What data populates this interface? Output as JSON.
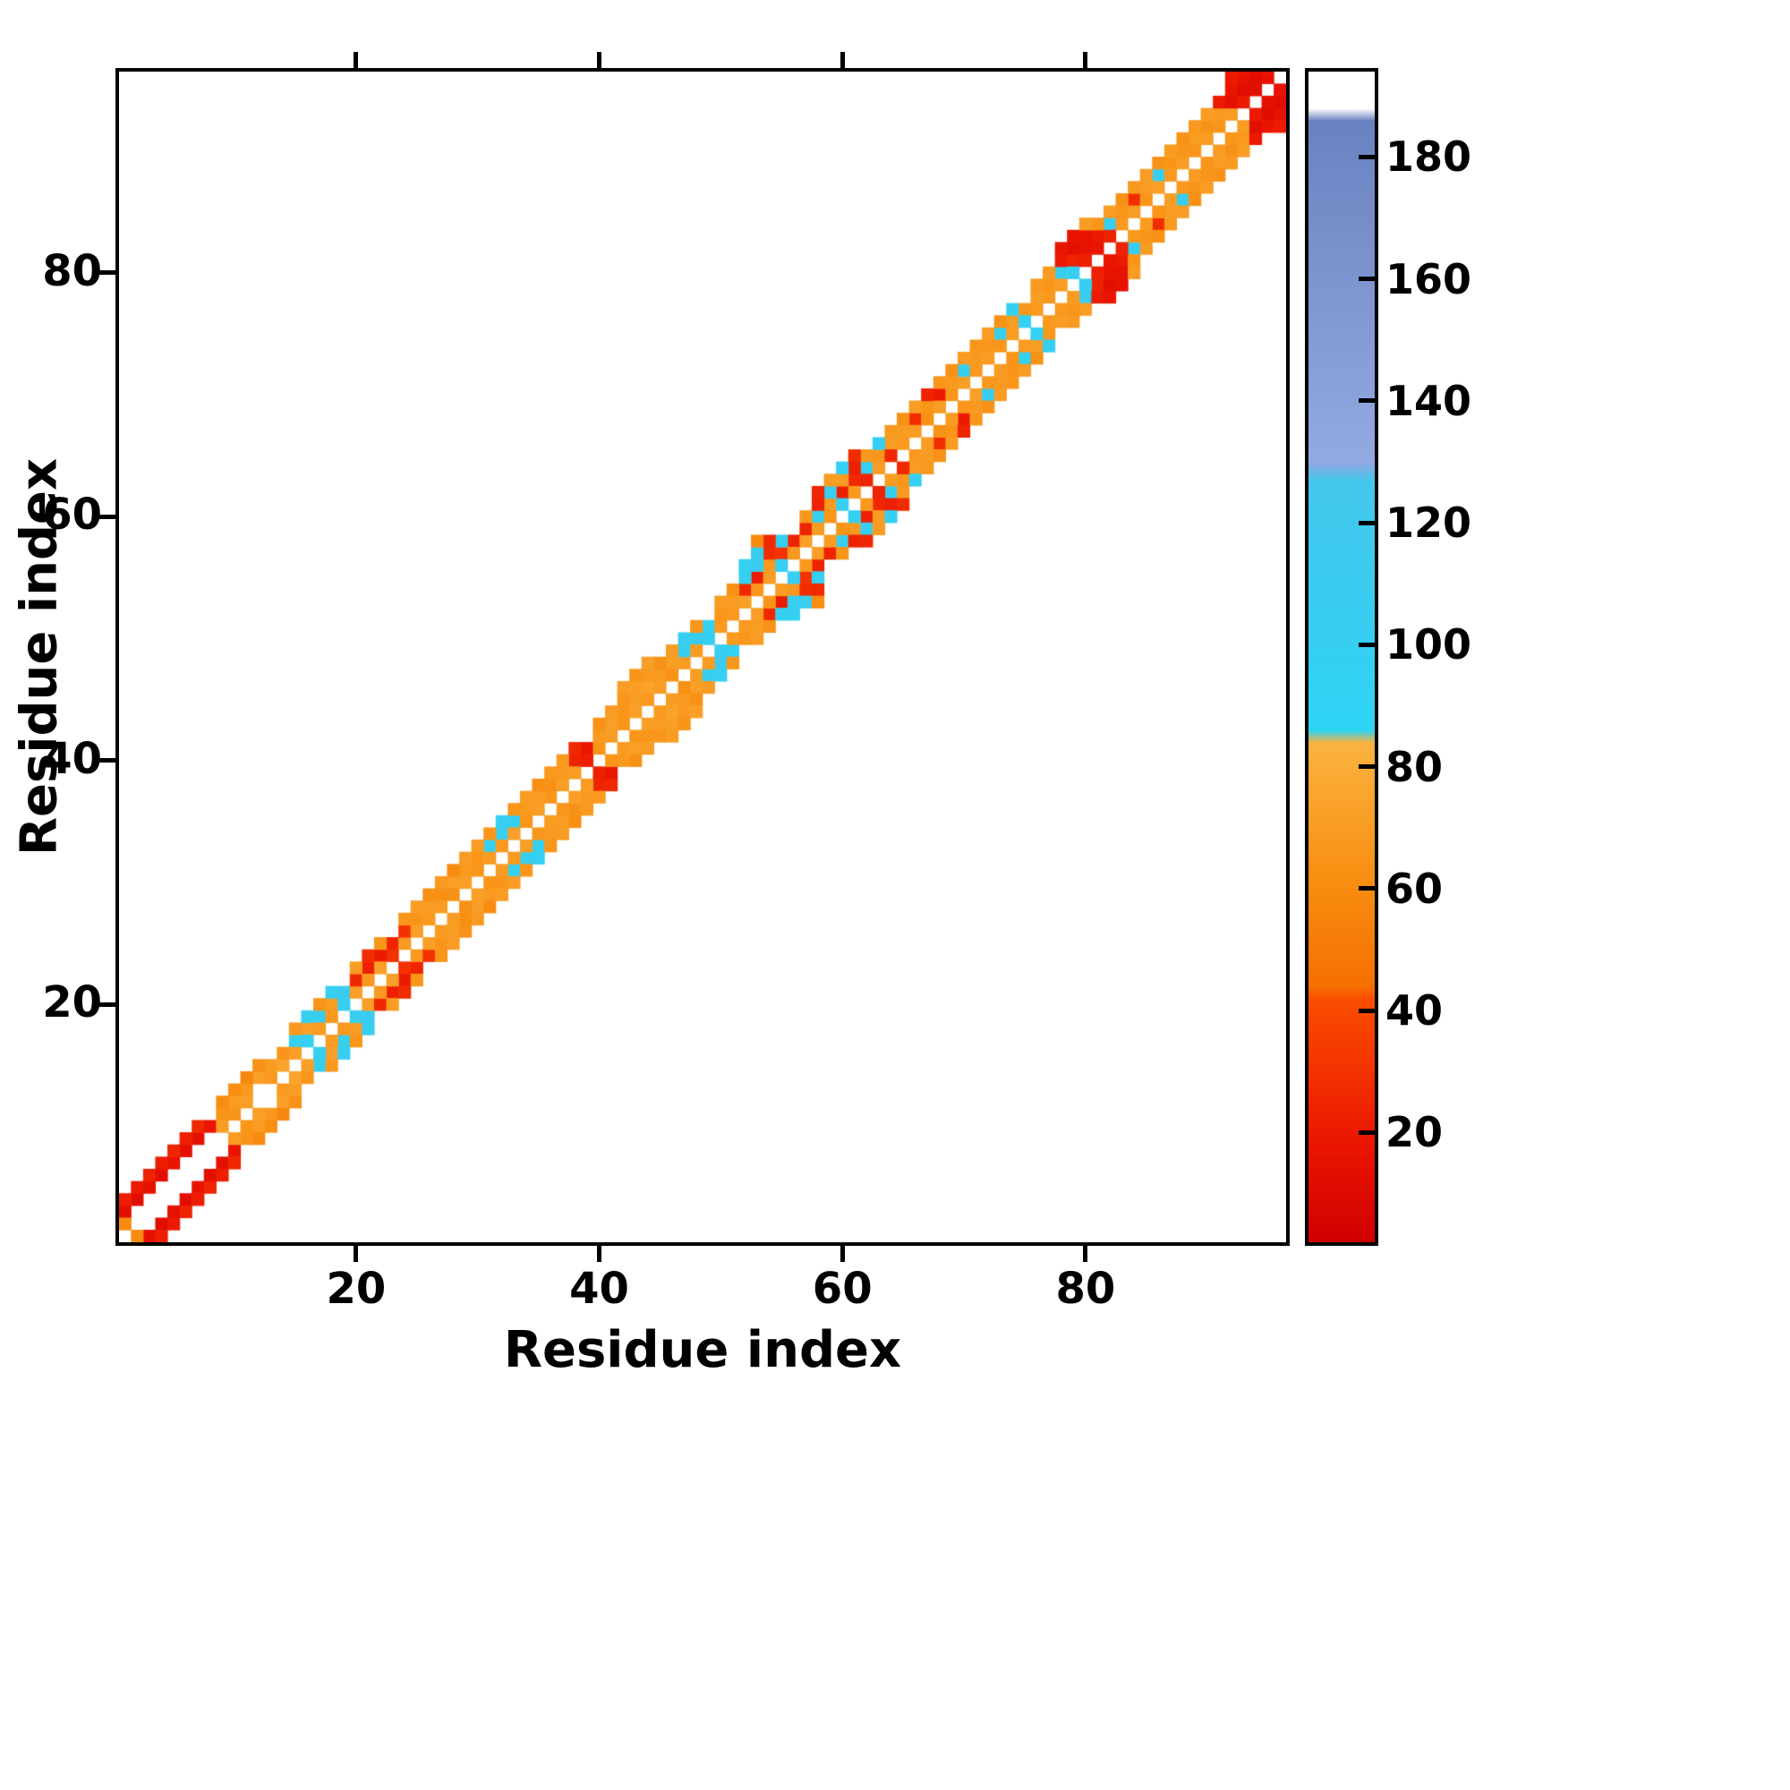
{
  "chart_data": {
    "type": "heatmap",
    "title": "",
    "xlabel": "Residue index",
    "ylabel": "Residue index",
    "x_ticks": [
      20,
      40,
      60,
      80
    ],
    "y_ticks": [
      20,
      40,
      60,
      80
    ],
    "axis_min": 0.5,
    "axis_max": 96.5,
    "n_residues": 96,
    "symmetric": true,
    "background_color": "#ffffff",
    "colorbar": {
      "range": [
        2,
        194
      ],
      "ticks": [
        20,
        40,
        60,
        80,
        100,
        120,
        140,
        160,
        180
      ],
      "stops": [
        {
          "v": 2,
          "color": "#cf0000"
        },
        {
          "v": 18,
          "color": "#ea1500"
        },
        {
          "v": 42,
          "color": "#fb4e00"
        },
        {
          "v": 44,
          "color": "#f57000"
        },
        {
          "v": 62,
          "color": "#f88f12"
        },
        {
          "v": 84,
          "color": "#fbb340"
        },
        {
          "v": 86,
          "color": "#2ed4f4"
        },
        {
          "v": 127,
          "color": "#44c6ec"
        },
        {
          "v": 130,
          "color": "#93a9e2"
        },
        {
          "v": 186,
          "color": "#6a82c0"
        },
        {
          "v": 188,
          "color": "#ffffff"
        },
        {
          "v": 194,
          "color": "#ffffff"
        }
      ]
    },
    "contacts": [
      [
        1,
        3,
        14
      ],
      [
        2,
        4,
        12
      ],
      [
        3,
        5,
        15
      ],
      [
        4,
        6,
        13
      ],
      [
        5,
        7,
        16
      ],
      [
        6,
        8,
        14
      ],
      [
        7,
        9,
        15
      ],
      [
        8,
        10,
        18
      ],
      [
        1,
        4,
        22
      ],
      [
        2,
        5,
        20
      ],
      [
        3,
        6,
        24
      ],
      [
        4,
        7,
        21
      ],
      [
        5,
        8,
        25
      ],
      [
        6,
        9,
        22
      ],
      [
        7,
        10,
        26
      ],
      [
        1,
        2,
        60
      ],
      [
        9,
        11,
        65
      ],
      [
        10,
        12,
        70
      ],
      [
        11,
        13,
        68
      ],
      [
        12,
        14,
        72
      ],
      [
        9,
        12,
        60
      ],
      [
        10,
        13,
        62
      ],
      [
        11,
        14,
        58
      ],
      [
        12,
        15,
        64
      ],
      [
        9,
        10,
        70
      ],
      [
        10,
        11,
        66
      ],
      [
        11,
        12,
        72
      ],
      [
        13,
        14,
        68
      ],
      [
        13,
        15,
        70
      ],
      [
        14,
        15,
        75
      ],
      [
        14,
        16,
        66
      ],
      [
        15,
        17,
        100
      ],
      [
        16,
        18,
        72
      ],
      [
        17,
        19,
        105
      ],
      [
        18,
        20,
        70
      ],
      [
        19,
        21,
        108
      ],
      [
        15,
        18,
        68
      ],
      [
        16,
        19,
        102
      ],
      [
        17,
        20,
        66
      ],
      [
        18,
        21,
        100
      ],
      [
        15,
        16,
        72
      ],
      [
        16,
        17,
        100
      ],
      [
        17,
        18,
        70
      ],
      [
        18,
        19,
        68
      ],
      [
        19,
        20,
        104
      ],
      [
        20,
        21,
        72
      ],
      [
        20,
        22,
        26
      ],
      [
        21,
        23,
        22
      ],
      [
        22,
        24,
        20
      ],
      [
        23,
        25,
        24
      ],
      [
        20,
        23,
        70
      ],
      [
        21,
        24,
        28
      ],
      [
        22,
        25,
        66
      ],
      [
        21,
        22,
        68
      ],
      [
        22,
        23,
        72
      ],
      [
        23,
        24,
        30
      ],
      [
        24,
        25,
        68
      ],
      [
        24,
        26,
        30
      ],
      [
        25,
        27,
        65
      ],
      [
        26,
        28,
        70
      ],
      [
        27,
        29,
        62
      ],
      [
        28,
        30,
        72
      ],
      [
        29,
        31,
        68
      ],
      [
        30,
        32,
        66
      ],
      [
        24,
        27,
        66
      ],
      [
        25,
        28,
        70
      ],
      [
        26,
        29,
        64
      ],
      [
        27,
        30,
        68
      ],
      [
        28,
        31,
        60
      ],
      [
        29,
        32,
        70
      ],
      [
        25,
        26,
        72
      ],
      [
        26,
        27,
        68
      ],
      [
        27,
        28,
        70
      ],
      [
        28,
        29,
        64
      ],
      [
        29,
        30,
        72
      ],
      [
        30,
        31,
        66
      ],
      [
        31,
        33,
        100
      ],
      [
        32,
        34,
        104
      ],
      [
        33,
        35,
        98
      ],
      [
        30,
        33,
        70
      ],
      [
        31,
        34,
        66
      ],
      [
        32,
        35,
        102
      ],
      [
        31,
        32,
        70
      ],
      [
        32,
        33,
        68
      ],
      [
        33,
        34,
        72
      ],
      [
        34,
        35,
        66
      ],
      [
        34,
        36,
        68
      ],
      [
        35,
        37,
        70
      ],
      [
        36,
        38,
        64
      ],
      [
        37,
        39,
        68
      ],
      [
        33,
        36,
        66
      ],
      [
        34,
        37,
        70
      ],
      [
        35,
        38,
        62
      ],
      [
        36,
        39,
        68
      ],
      [
        35,
        36,
        70
      ],
      [
        36,
        37,
        66
      ],
      [
        37,
        38,
        72
      ],
      [
        38,
        40,
        24
      ],
      [
        39,
        41,
        18
      ],
      [
        37,
        40,
        68
      ],
      [
        38,
        41,
        26
      ],
      [
        38,
        39,
        70
      ],
      [
        39,
        40,
        22
      ],
      [
        40,
        41,
        66
      ],
      [
        40,
        42,
        68
      ],
      [
        41,
        43,
        72
      ],
      [
        42,
        44,
        66
      ],
      [
        43,
        45,
        70
      ],
      [
        44,
        46,
        74
      ],
      [
        45,
        47,
        68
      ],
      [
        46,
        48,
        72
      ],
      [
        40,
        43,
        64
      ],
      [
        41,
        44,
        70
      ],
      [
        42,
        45,
        66
      ],
      [
        43,
        46,
        72
      ],
      [
        44,
        47,
        68
      ],
      [
        45,
        48,
        64
      ],
      [
        42,
        46,
        70
      ],
      [
        43,
        47,
        66
      ],
      [
        44,
        48,
        72
      ],
      [
        41,
        42,
        70
      ],
      [
        42,
        43,
        66
      ],
      [
        43,
        44,
        72
      ],
      [
        44,
        45,
        68
      ],
      [
        45,
        46,
        70
      ],
      [
        46,
        47,
        64
      ],
      [
        47,
        48,
        70
      ],
      [
        47,
        49,
        100
      ],
      [
        48,
        50,
        108
      ],
      [
        49,
        51,
        96
      ],
      [
        46,
        49,
        70
      ],
      [
        47,
        50,
        102
      ],
      [
        48,
        51,
        66
      ],
      [
        48,
        49,
        70
      ],
      [
        49,
        50,
        104
      ],
      [
        50,
        51,
        68
      ],
      [
        50,
        52,
        66
      ],
      [
        51,
        53,
        70
      ],
      [
        52,
        54,
        26
      ],
      [
        53,
        55,
        20
      ],
      [
        54,
        56,
        68
      ],
      [
        55,
        57,
        30
      ],
      [
        56,
        58,
        24
      ],
      [
        50,
        53,
        70
      ],
      [
        51,
        54,
        64
      ],
      [
        52,
        55,
        100
      ],
      [
        53,
        56,
        104
      ],
      [
        54,
        57,
        28
      ],
      [
        55,
        58,
        98
      ],
      [
        52,
        56,
        98
      ],
      [
        53,
        57,
        106
      ],
      [
        54,
        58,
        26
      ],
      [
        53,
        58,
        60
      ],
      [
        51,
        52,
        68
      ],
      [
        52,
        53,
        72
      ],
      [
        53,
        54,
        66
      ],
      [
        54,
        55,
        70
      ],
      [
        55,
        56,
        100
      ],
      [
        56,
        57,
        68
      ],
      [
        57,
        58,
        72
      ],
      [
        57,
        59,
        24
      ],
      [
        58,
        60,
        102
      ],
      [
        59,
        61,
        68
      ],
      [
        60,
        62,
        22
      ],
      [
        61,
        63,
        26
      ],
      [
        62,
        64,
        100
      ],
      [
        63,
        65,
        66
      ],
      [
        64,
        66,
        70
      ],
      [
        57,
        60,
        66
      ],
      [
        58,
        61,
        24
      ],
      [
        59,
        62,
        104
      ],
      [
        60,
        63,
        70
      ],
      [
        61,
        64,
        22
      ],
      [
        62,
        65,
        68
      ],
      [
        63,
        66,
        100
      ],
      [
        58,
        62,
        26
      ],
      [
        59,
        63,
        70
      ],
      [
        60,
        64,
        98
      ],
      [
        61,
        65,
        28
      ],
      [
        58,
        59,
        70
      ],
      [
        59,
        60,
        66
      ],
      [
        60,
        61,
        100
      ],
      [
        61,
        62,
        68
      ],
      [
        62,
        63,
        24
      ],
      [
        63,
        64,
        70
      ],
      [
        64,
        65,
        26
      ],
      [
        65,
        66,
        68
      ],
      [
        65,
        67,
        70
      ],
      [
        66,
        68,
        28
      ],
      [
        67,
        69,
        66
      ],
      [
        68,
        70,
        20
      ],
      [
        69,
        71,
        68
      ],
      [
        64,
        67,
        68
      ],
      [
        65,
        68,
        64
      ],
      [
        66,
        69,
        70
      ],
      [
        67,
        70,
        24
      ],
      [
        68,
        71,
        66
      ],
      [
        66,
        67,
        70
      ],
      [
        67,
        68,
        64
      ],
      [
        68,
        69,
        70
      ],
      [
        69,
        70,
        66
      ],
      [
        70,
        71,
        72
      ],
      [
        70,
        72,
        100
      ],
      [
        71,
        73,
        68
      ],
      [
        72,
        74,
        66
      ],
      [
        73,
        75,
        96
      ],
      [
        74,
        76,
        70
      ],
      [
        75,
        77,
        66
      ],
      [
        69,
        72,
        64
      ],
      [
        70,
        73,
        70
      ],
      [
        71,
        74,
        66
      ],
      [
        72,
        75,
        70
      ],
      [
        73,
        76,
        64
      ],
      [
        74,
        77,
        100
      ],
      [
        71,
        72,
        68
      ],
      [
        72,
        73,
        70
      ],
      [
        73,
        74,
        66
      ],
      [
        74,
        75,
        70
      ],
      [
        75,
        76,
        98
      ],
      [
        76,
        77,
        68
      ],
      [
        76,
        78,
        70
      ],
      [
        77,
        79,
        66
      ],
      [
        78,
        80,
        100
      ],
      [
        79,
        81,
        24
      ],
      [
        80,
        82,
        16
      ],
      [
        81,
        83,
        20
      ],
      [
        82,
        84,
        102
      ],
      [
        76,
        79,
        68
      ],
      [
        77,
        80,
        70
      ],
      [
        78,
        81,
        20
      ],
      [
        79,
        82,
        14
      ],
      [
        80,
        83,
        16
      ],
      [
        81,
        84,
        66
      ],
      [
        78,
        82,
        18
      ],
      [
        79,
        83,
        16
      ],
      [
        80,
        84,
        70
      ],
      [
        77,
        78,
        68
      ],
      [
        78,
        79,
        70
      ],
      [
        79,
        80,
        102
      ],
      [
        80,
        81,
        22
      ],
      [
        81,
        82,
        18
      ],
      [
        82,
        83,
        24
      ],
      [
        83,
        84,
        68
      ],
      [
        83,
        85,
        66
      ],
      [
        84,
        86,
        28
      ],
      [
        85,
        87,
        70
      ],
      [
        86,
        88,
        100
      ],
      [
        87,
        89,
        66
      ],
      [
        82,
        85,
        70
      ],
      [
        83,
        86,
        64
      ],
      [
        84,
        87,
        68
      ],
      [
        85,
        88,
        70
      ],
      [
        86,
        89,
        64
      ],
      [
        84,
        85,
        70
      ],
      [
        85,
        86,
        66
      ],
      [
        86,
        87,
        72
      ],
      [
        87,
        88,
        68
      ],
      [
        88,
        89,
        70
      ],
      [
        88,
        90,
        66
      ],
      [
        89,
        91,
        70
      ],
      [
        90,
        92,
        64
      ],
      [
        91,
        93,
        68
      ],
      [
        87,
        90,
        70
      ],
      [
        88,
        91,
        64
      ],
      [
        89,
        92,
        68
      ],
      [
        90,
        93,
        70
      ],
      [
        89,
        90,
        66
      ],
      [
        90,
        91,
        70
      ],
      [
        91,
        92,
        66
      ],
      [
        92,
        93,
        70
      ],
      [
        91,
        94,
        20
      ],
      [
        92,
        94,
        14
      ],
      [
        92,
        95,
        18
      ],
      [
        93,
        95,
        12
      ],
      [
        93,
        96,
        16
      ],
      [
        94,
        96,
        12
      ],
      [
        93,
        94,
        20
      ],
      [
        94,
        95,
        14
      ],
      [
        95,
        96,
        16
      ],
      [
        92,
        96,
        20
      ]
    ]
  }
}
